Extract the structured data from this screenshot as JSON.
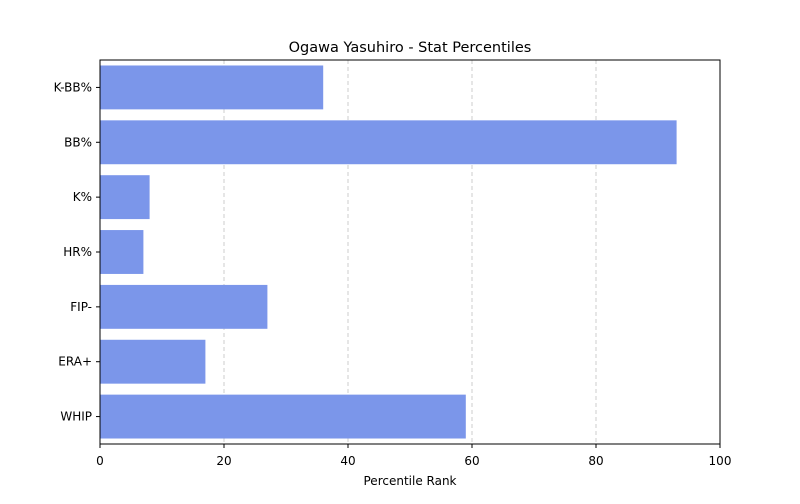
{
  "chart_data": {
    "type": "bar",
    "orientation": "horizontal",
    "title": "Ogawa Yasuhiro - Stat Percentiles",
    "xlabel": "Percentile Rank",
    "ylabel": "",
    "categories": [
      "K-BB%",
      "BB%",
      "K%",
      "HR%",
      "FIP-",
      "ERA+",
      "WHIP"
    ],
    "values": [
      36,
      93,
      8,
      7,
      27,
      17,
      59
    ],
    "xlim": [
      0,
      100
    ],
    "xticks": [
      0,
      20,
      40,
      60,
      80,
      100
    ],
    "grid": "x-dashed",
    "bar_color": "#7b96ea"
  }
}
